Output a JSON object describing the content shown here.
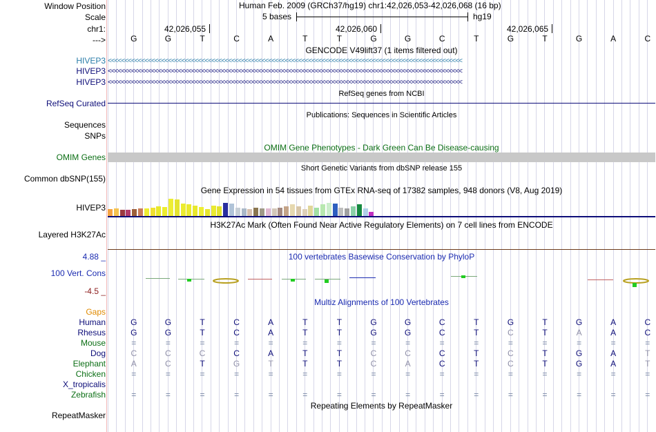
{
  "header": {
    "window_position_label": "Window Position",
    "window_position_value": "Human Feb. 2009 (GRCh37/hg19)   chr1:42,026,053-42,026,068 (16 bp)",
    "scale_label": "Scale",
    "scale_value": "5 bases",
    "scale_assembly": "hg19",
    "chr_label": "chr1:",
    "pos1": "42,026,055",
    "pos2": "42,026,060",
    "pos3": "42,026,065",
    "strand_label": "--->",
    "bases": [
      "G",
      "G",
      "T",
      "C",
      "A",
      "T",
      "T",
      "G",
      "G",
      "C",
      "T",
      "G",
      "T",
      "G",
      "A",
      "C"
    ]
  },
  "tracks": {
    "gencode": {
      "title": "GENCODE V49lift37 (1 items filtered out)",
      "genes": [
        "HIVEP3",
        "HIVEP3",
        "HIVEP3"
      ],
      "colors": [
        "#2a7ca8",
        "#0c0c78",
        "#0c0c78"
      ],
      "arrows": "<<<<<<<<<<<<<<<<<<<<<<<<<<<<<<<<<<<<<<<<<<<<<<<<<<<<<<<<<<<<<<<<<<<<<<<<<<<<<<<<<<<<<<<<<<<<<<<<<<<<<<<<<<"
    },
    "refseq": {
      "title": "RefSeq genes from NCBI",
      "label": "RefSeq Curated",
      "color": "#0c0c78"
    },
    "publications": {
      "title": "Publications: Sequences in Scientific Articles",
      "label1": "Sequences",
      "label2": "SNPs"
    },
    "omim": {
      "title": "OMIM Gene Phenotypes - Dark Green Can Be Disease-causing",
      "label": "OMIM Genes",
      "color": "#0b6e14"
    },
    "dbsnp": {
      "title": "Short Genetic Variants from dbSNP release 155",
      "label": "Common dbSNP(155)"
    },
    "gtex": {
      "title": "Gene Expression in 54 tissues from GTEx RNA-seq of 17382 samples, 948 donors (V8, Aug 2019)",
      "label": "HIVEP3",
      "bars": [
        {
          "v": 0.33,
          "c": "#f5a442"
        },
        {
          "v": 0.37,
          "c": "#f5c34f"
        },
        {
          "v": 0.3,
          "c": "#9c3a40"
        },
        {
          "v": 0.3,
          "c": "#b23a6a"
        },
        {
          "v": 0.34,
          "c": "#9e5f3a"
        },
        {
          "v": 0.37,
          "c": "#cb7c5a"
        },
        {
          "v": 0.35,
          "c": "#eeee33"
        },
        {
          "v": 0.4,
          "c": "#f0e030"
        },
        {
          "v": 0.45,
          "c": "#e8e82a"
        },
        {
          "v": 0.42,
          "c": "#eded2e"
        },
        {
          "v": 0.82,
          "c": "#eeee33"
        },
        {
          "v": 0.8,
          "c": "#e4e430"
        },
        {
          "v": 0.6,
          "c": "#ecec30"
        },
        {
          "v": 0.55,
          "c": "#eaea2e"
        },
        {
          "v": 0.5,
          "c": "#e8e82c"
        },
        {
          "v": 0.42,
          "c": "#eeee33"
        },
        {
          "v": 0.32,
          "c": "#e6e62e"
        },
        {
          "v": 0.5,
          "c": "#eaea30"
        },
        {
          "v": 0.45,
          "c": "#e2e22c"
        },
        {
          "v": 0.62,
          "c": "#2a2fa0"
        },
        {
          "v": 0.6,
          "c": "#b0c3d8"
        },
        {
          "v": 0.4,
          "c": "#c6ced6"
        },
        {
          "v": 0.35,
          "c": "#aab8c8"
        },
        {
          "v": 0.33,
          "c": "#d6bfae"
        },
        {
          "v": 0.4,
          "c": "#8a7650"
        },
        {
          "v": 0.36,
          "c": "#a09a88"
        },
        {
          "v": 0.38,
          "c": "#e0b8d0"
        },
        {
          "v": 0.36,
          "c": "#d3c7b9"
        },
        {
          "v": 0.4,
          "c": "#a58a80"
        },
        {
          "v": 0.45,
          "c": "#c4a488"
        },
        {
          "v": 0.55,
          "c": "#e6d8b0"
        },
        {
          "v": 0.46,
          "c": "#d8c6a8"
        },
        {
          "v": 0.33,
          "c": "#ded0b8"
        },
        {
          "v": 0.5,
          "c": "#e0d69a"
        },
        {
          "v": 0.4,
          "c": "#a2e0a4"
        },
        {
          "v": 0.55,
          "c": "#b8e8b0"
        },
        {
          "v": 0.62,
          "c": "#cceecc"
        },
        {
          "v": 0.6,
          "c": "#2e5fc0"
        },
        {
          "v": 0.4,
          "c": "#bfbfbf"
        },
        {
          "v": 0.35,
          "c": "#a0a0a0"
        },
        {
          "v": 0.45,
          "c": "#8bd0a8"
        },
        {
          "v": 0.55,
          "c": "#168a40"
        },
        {
          "v": 0.35,
          "c": "#b0d0e8"
        },
        {
          "v": 0.2,
          "c": "#c030c0"
        }
      ]
    },
    "h3k27ac": {
      "title": "H3K27Ac Mark (Often Found Near Active Regulatory Elements) on 7 cell lines from ENCODE",
      "label": "Layered H3K27Ac"
    },
    "phylop": {
      "title": "100 vertebrates Basewise Conservation by PhyloP",
      "label": "100 Vert. Cons",
      "max": "4.88 _",
      "min": "-4.5 _",
      "color_title": "#1a2ab0"
    },
    "multiz": {
      "title": "Multiz Alignments of 100 Vertebrates",
      "gaps_label": "Gaps",
      "species": [
        {
          "name": "Human",
          "color": "#0c0c78",
          "bases": [
            "G",
            "G",
            "T",
            "C",
            "A",
            "T",
            "T",
            "G",
            "G",
            "C",
            "T",
            "G",
            "T",
            "G",
            "A",
            "C"
          ],
          "dim": []
        },
        {
          "name": "Rhesus",
          "color": "#0c0c78",
          "bases": [
            "G",
            "G",
            "T",
            "C",
            "A",
            "T",
            "T",
            "G",
            "G",
            "C",
            "T",
            "C",
            "T",
            "A",
            "A",
            "C"
          ],
          "dim": [
            11,
            13
          ]
        },
        {
          "name": "Mouse",
          "color": "#0b6e14",
          "bases": [
            "=",
            "=",
            "=",
            "=",
            "=",
            "=",
            "=",
            "=",
            "=",
            "=",
            "=",
            "=",
            "=",
            "=",
            "=",
            "="
          ],
          "dim": []
        },
        {
          "name": "Dog",
          "color": "#0c0c78",
          "bases": [
            "C",
            "C",
            "C",
            "C",
            "A",
            "T",
            "T",
            "C",
            "C",
            "C",
            "T",
            "C",
            "T",
            "G",
            "A",
            "T"
          ],
          "dim": [
            0,
            1,
            2,
            7,
            8,
            11,
            15
          ]
        },
        {
          "name": "Elephant",
          "color": "#0b6e14",
          "bases": [
            "A",
            "C",
            "T",
            "G",
            "T",
            "T",
            "T",
            "C",
            "A",
            "C",
            "T",
            "C",
            "T",
            "G",
            "A",
            "T"
          ],
          "dim": [
            0,
            1,
            3,
            4,
            7,
            8,
            11,
            15
          ]
        },
        {
          "name": "Chicken",
          "color": "#0b6e14",
          "bases": [
            "=",
            "=",
            "=",
            "=",
            "=",
            "=",
            "=",
            "=",
            "=",
            "=",
            "=",
            "=",
            "=",
            "=",
            "=",
            "="
          ],
          "dim": []
        },
        {
          "name": "X_tropicalis",
          "color": "#0c0c78",
          "bases": [
            "",
            "",
            "",
            "",
            "",
            "",
            "",
            "",
            "",
            "",
            "",
            "",
            "",
            "",
            "",
            ""
          ],
          "dim": []
        },
        {
          "name": "Zebrafish",
          "color": "#0b6e14",
          "bases": [
            "=",
            "=",
            "=",
            "=",
            "=",
            "=",
            "=",
            "=",
            "=",
            "=",
            "=",
            "=",
            "=",
            "=",
            "=",
            "="
          ],
          "dim": []
        }
      ]
    },
    "repeatmasker": {
      "title": "Repeating Elements by RepeatMasker",
      "label": "RepeatMasker"
    }
  }
}
